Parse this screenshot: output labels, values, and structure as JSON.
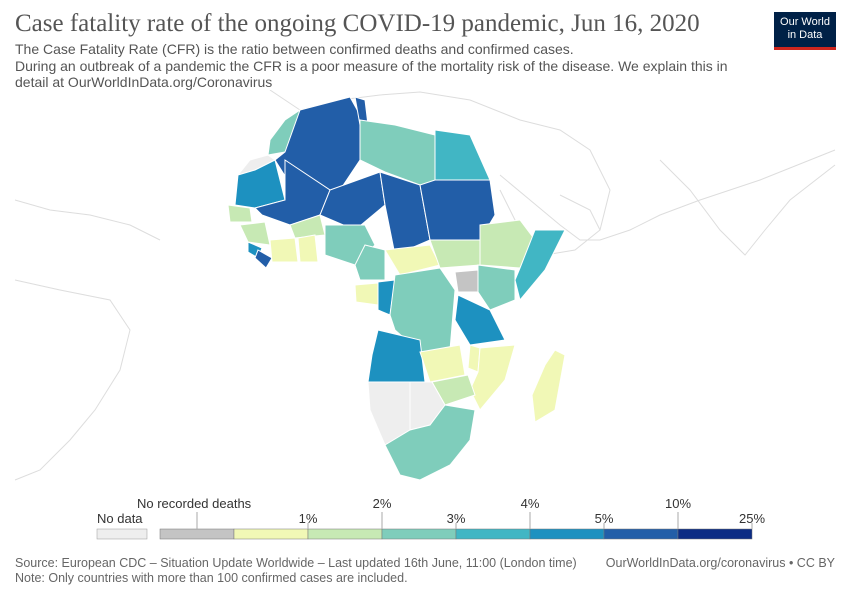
{
  "title": "Case fatality rate of the ongoing COVID-19 pandemic, Jun 16, 2020",
  "subtitle": "The Case Fatality Rate (CFR) is the ratio between confirmed deaths and confirmed cases.\n During an outbreak of a pandemic the CFR is a poor measure of the mortality risk of the disease. We explain this in detail at OurWorldInData.org/Coronavirus",
  "logo": {
    "line1": "Our World",
    "line2": "in Data"
  },
  "legend": {
    "no_data_label": "No data",
    "no_deaths_label": "No recorded deaths",
    "upper_ticks": [
      "2%",
      "4%",
      "10%"
    ],
    "lower_ticks": [
      "1%",
      "3%",
      "5%",
      "25%"
    ],
    "colors": {
      "no_data": "#eeeeee",
      "no_deaths": "#c4c4c4",
      "bin1": "#f1f8b6",
      "bin2": "#c7e9b4",
      "bin3": "#7fcdbb",
      "bin4": "#41b6c4",
      "bin5": "#1d91c0",
      "bin6": "#225ea8",
      "bin7": "#0c2c84"
    }
  },
  "footer": {
    "source": "Source: European CDC – Situation Update Worldwide – Last updated 16th June, 11:00 (London time)",
    "note": "Note: Only countries with more than 100 confirmed cases are included.",
    "credit": "OurWorldInData.org/coronavirus • CC BY"
  }
}
